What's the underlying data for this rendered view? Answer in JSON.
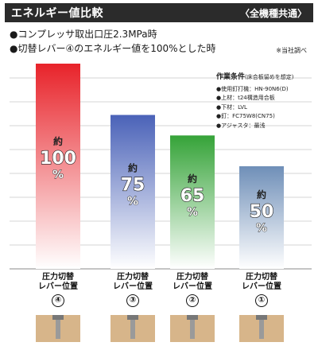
{
  "header": {
    "title": "エネルギー値比較",
    "badge": "〈全機種共通〉"
  },
  "conditions": [
    "●コンプレッサ取出口圧2.3MPa時",
    "●切替レバー④のエネルギー値を100%とした時"
  ],
  "survey_note": "※当社調べ",
  "work_conditions": {
    "title": "作業条件",
    "subtitle": "(床合板留めを想定)",
    "items": [
      "●使用釘打機：HN-90N6(D)",
      "●上材：t24構造用合板",
      "●下材：LVL",
      "●釘：FC75W8(CN75)",
      "●アジャスタ：最浅"
    ]
  },
  "chart_data": {
    "type": "bar",
    "categories": [
      "④",
      "③",
      "②",
      "①"
    ],
    "category_label_line1": "圧力切替",
    "category_label_line2": "レバー位置",
    "values": [
      100,
      75,
      65,
      50
    ],
    "value_prefix": "約",
    "value_unit": "%",
    "ylim": [
      0,
      100
    ],
    "grid": true,
    "colors": [
      "#e8232a",
      "#4a62b8",
      "#35a338",
      "#6f8fb8"
    ]
  }
}
